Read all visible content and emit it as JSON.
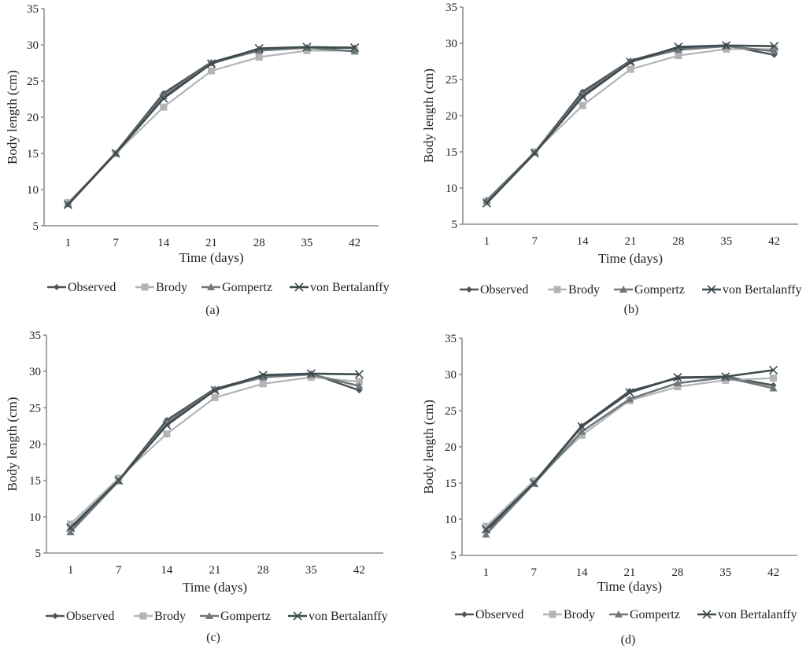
{
  "chart_data": [
    {
      "type": "line",
      "panel_label": "(a)",
      "title": "",
      "xlabel": "Time (days)",
      "ylabel": "Body length (cm)",
      "categories": [
        "1",
        "7",
        "14",
        "21",
        "28",
        "35",
        "42"
      ],
      "yticks": [
        "5",
        "10",
        "15",
        "20",
        "25",
        "30",
        "35"
      ],
      "ylim": [
        5,
        35
      ],
      "grid": false,
      "legend": "bottom",
      "series": [
        {
          "name": "Observed",
          "marker": "diamond",
          "color": "#4d5559",
          "values": [
            8.0,
            15.1,
            23.3,
            27.6,
            29.4,
            29.6,
            29.6
          ]
        },
        {
          "name": "Brody",
          "marker": "square",
          "color": "#b2b4b6",
          "values": [
            8.2,
            15.0,
            21.4,
            26.4,
            28.3,
            29.2,
            29.2
          ]
        },
        {
          "name": "Gompertz",
          "marker": "triangle",
          "color": "#6f777b",
          "values": [
            8.0,
            15.0,
            22.9,
            27.5,
            29.2,
            29.6,
            29.1
          ]
        },
        {
          "name": "von Bertalanffy",
          "marker": "x",
          "color": "#3f4a4f",
          "values": [
            7.9,
            15.0,
            22.6,
            27.4,
            29.5,
            29.7,
            29.6
          ]
        }
      ]
    },
    {
      "type": "line",
      "panel_label": "(b)",
      "title": "",
      "xlabel": "Time (days)",
      "ylabel": "Body length (cm)",
      "categories": [
        "1",
        "7",
        "14",
        "21",
        "28",
        "35",
        "42"
      ],
      "yticks": [
        "5",
        "10",
        "15",
        "20",
        "25",
        "30",
        "35"
      ],
      "ylim": [
        5,
        35
      ],
      "grid": false,
      "legend": "bottom",
      "series": [
        {
          "name": "Observed",
          "marker": "diamond",
          "color": "#4d5559",
          "values": [
            8.0,
            14.9,
            23.3,
            27.6,
            29.4,
            29.7,
            28.4
          ]
        },
        {
          "name": "Brody",
          "marker": "square",
          "color": "#b2b4b6",
          "values": [
            8.2,
            15.0,
            21.4,
            26.4,
            28.3,
            29.2,
            29.2
          ]
        },
        {
          "name": "Gompertz",
          "marker": "triangle",
          "color": "#6f777b",
          "values": [
            8.3,
            14.9,
            22.9,
            27.5,
            29.1,
            29.6,
            28.9
          ]
        },
        {
          "name": "von Bertalanffy",
          "marker": "x",
          "color": "#3f4a4f",
          "values": [
            7.9,
            14.8,
            22.6,
            27.4,
            29.5,
            29.7,
            29.6
          ]
        }
      ]
    },
    {
      "type": "line",
      "panel_label": "(c)",
      "title": "",
      "xlabel": "Time (days)",
      "ylabel": "Body length (cm)",
      "categories": [
        "1",
        "7",
        "14",
        "21",
        "28",
        "35",
        "42"
      ],
      "yticks": [
        "5",
        "10",
        "15",
        "20",
        "25",
        "30",
        "35"
      ],
      "ylim": [
        5,
        35
      ],
      "grid": false,
      "legend": "bottom",
      "series": [
        {
          "name": "Observed",
          "marker": "diamond",
          "color": "#4d5559",
          "values": [
            8.3,
            15.0,
            23.3,
            27.6,
            29.4,
            29.7,
            27.4
          ]
        },
        {
          "name": "Brody",
          "marker": "square",
          "color": "#b2b4b6",
          "values": [
            9.0,
            15.3,
            21.4,
            26.4,
            28.3,
            29.2,
            28.6
          ]
        },
        {
          "name": "Gompertz",
          "marker": "triangle",
          "color": "#6f777b",
          "values": [
            7.9,
            14.9,
            22.9,
            27.5,
            29.2,
            29.6,
            28.0
          ]
        },
        {
          "name": "von Bertalanffy",
          "marker": "x",
          "color": "#3f4a4f",
          "values": [
            8.5,
            15.0,
            22.6,
            27.4,
            29.5,
            29.7,
            29.6
          ]
        }
      ]
    },
    {
      "type": "line",
      "panel_label": "(d)",
      "title": "",
      "xlabel": "Time (days)",
      "ylabel": "Body length (cm)",
      "categories": [
        "1",
        "7",
        "14",
        "21",
        "28",
        "35",
        "42"
      ],
      "yticks": [
        "5",
        "10",
        "15",
        "20",
        "25",
        "30",
        "35"
      ],
      "ylim": [
        5,
        35
      ],
      "grid": false,
      "legend": "bottom",
      "series": [
        {
          "name": "Observed",
          "marker": "diamond",
          "color": "#4d5559",
          "values": [
            8.3,
            15.0,
            22.9,
            27.7,
            29.5,
            29.7,
            28.5
          ]
        },
        {
          "name": "Brody",
          "marker": "square",
          "color": "#b2b4b6",
          "values": [
            9.0,
            15.3,
            21.6,
            26.4,
            28.3,
            29.2,
            29.5
          ]
        },
        {
          "name": "Gompertz",
          "marker": "triangle",
          "color": "#6f777b",
          "values": [
            7.9,
            14.9,
            22.1,
            26.6,
            28.8,
            29.6,
            28.1
          ]
        },
        {
          "name": "von Bertalanffy",
          "marker": "x",
          "color": "#3f4a4f",
          "values": [
            8.6,
            15.0,
            22.8,
            27.5,
            29.6,
            29.7,
            30.6
          ]
        }
      ]
    }
  ]
}
